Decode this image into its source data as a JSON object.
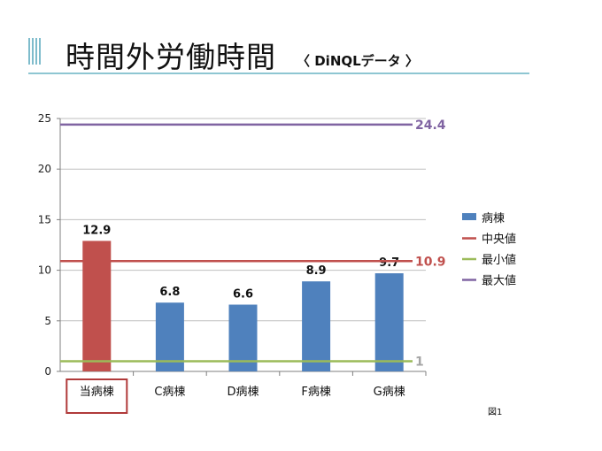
{
  "slide": {
    "title": "時間外労働時間",
    "subtitle": "〈 DiNQLデータ 〉",
    "figure_number": "図1"
  },
  "colors": {
    "bar": "#4f81bd",
    "highlight_bar": "#c0504d",
    "median": "#c0504d",
    "minimum": "#9bbb59",
    "maximum": "#8064a2",
    "highlight_box": "#b03a3a"
  },
  "chart_data": {
    "type": "bar",
    "categories": [
      "当病棟",
      "C病棟",
      "D病棟",
      "F病棟",
      "G病棟"
    ],
    "series": [
      {
        "name": "病棟",
        "values": [
          12.9,
          6.8,
          6.6,
          8.9,
          9.7
        ]
      }
    ],
    "data_labels": [
      "12.9",
      "6.8",
      "6.6",
      "8.9",
      "9.7"
    ],
    "highlight_index": 0,
    "reference_lines": [
      {
        "name": "中央値",
        "value": 10.9,
        "label": "10.9",
        "color": "#c0504d"
      },
      {
        "name": "最小値",
        "value": 1,
        "label": "1",
        "color": "#9bbb59"
      },
      {
        "name": "最大値",
        "value": 24.4,
        "label": "24.4",
        "color": "#8064a2"
      }
    ],
    "ylim": [
      0,
      25
    ],
    "yticks": [
      0,
      5,
      10,
      15,
      20,
      25
    ],
    "ytick_labels": [
      "0",
      "5",
      "10",
      "15",
      "20",
      "25"
    ],
    "grid": true,
    "legend": {
      "position": "right",
      "entries": [
        "病棟",
        "中央値",
        "最小値",
        "最大値"
      ]
    },
    "xlabel": "",
    "ylabel": ""
  }
}
